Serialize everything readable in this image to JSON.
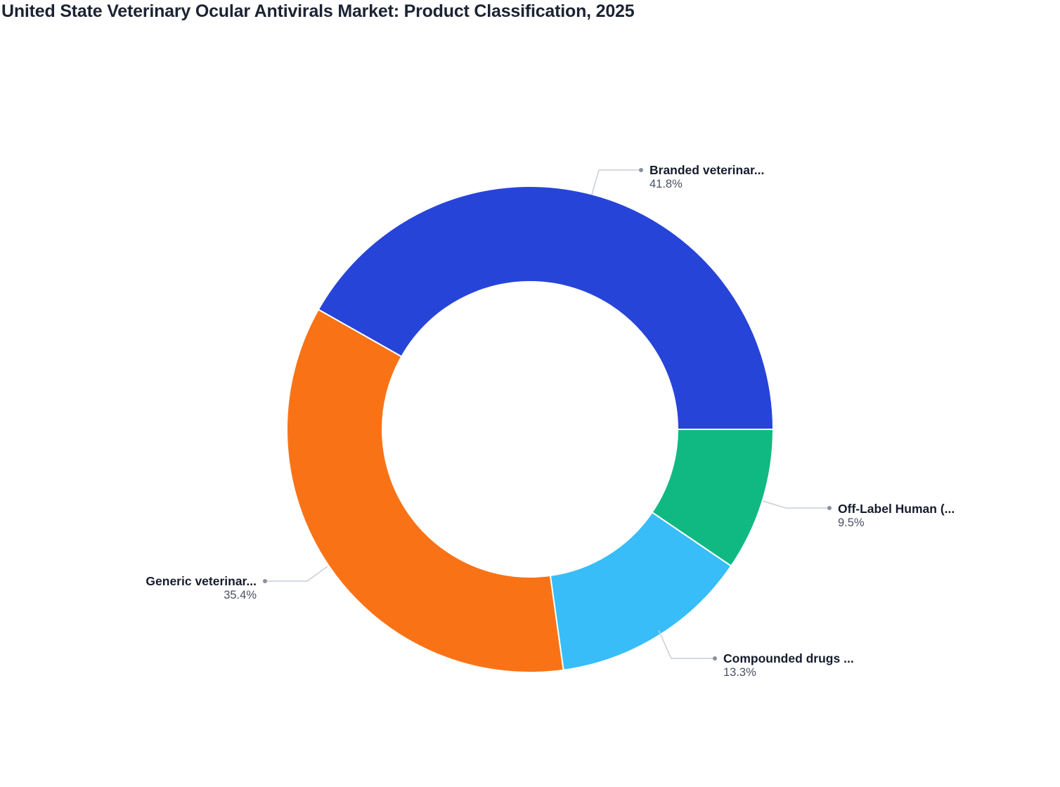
{
  "title": "United State Veterinary Ocular Antivirals Market: Product Classification, 2025",
  "chart_data": {
    "type": "pie",
    "subtype": "donut",
    "title": "United State Veterinary Ocular Antivirals Market: Product Classification, 2025",
    "categories": [
      "Branded veterinar...",
      "Generic veterinar...",
      "Compounded drugs ...",
      "Off-Label Human (..."
    ],
    "values": [
      41.8,
      35.4,
      13.3,
      9.5
    ],
    "unit": "%",
    "colors": [
      "#2744d9",
      "#f97316",
      "#38bdf8",
      "#10b981"
    ],
    "legend": "none (direct labels with leader lines)",
    "start_angle": "3 o'clock, counter-clockwise",
    "hole_ratio": 0.61
  },
  "labels": [
    {
      "name": "Branded veterinar...",
      "pct": "41.8%"
    },
    {
      "name": "Generic veterinar...",
      "pct": "35.4%"
    },
    {
      "name": "Compounded drugs ...",
      "pct": "13.3%"
    },
    {
      "name": "Off-Label Human (...",
      "pct": "9.5%"
    }
  ],
  "style": {
    "leader_color": "#c9ced9",
    "dot_color": "#8a909e",
    "separator_color": "#ffffff"
  }
}
